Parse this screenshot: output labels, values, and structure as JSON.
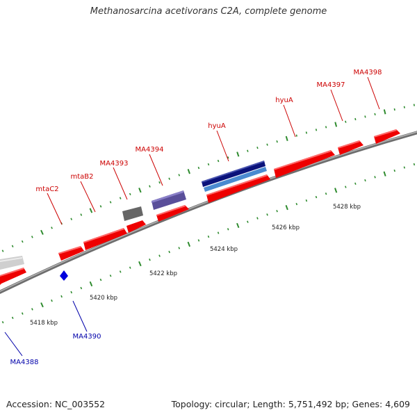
{
  "title": "Methanosarcina acetivorans C2A, complete genome",
  "footer": {
    "accession": "Accession: NC_003552",
    "summary": "Topology: circular; Length: 5,751,492 bp; Genes: 4,609"
  },
  "colors": {
    "forward_gene": "#ff0000",
    "reverse_gene": "#0000dd",
    "backbone": "#8a8a8a",
    "tick": "#2e8b2e",
    "forward_label": "#cc0000",
    "reverse_label": "#0000aa"
  },
  "scale_labels": [
    "5418 kbp",
    "5420 kbp",
    "5422 kbp",
    "5424 kbp",
    "5426 kbp",
    "5428 kbp"
  ],
  "gene_labels": [
    {
      "text": "mtaC2",
      "strand": "forward"
    },
    {
      "text": "mtaB2",
      "strand": "forward"
    },
    {
      "text": "MA4393",
      "strand": "forward"
    },
    {
      "text": "MA4394",
      "strand": "forward"
    },
    {
      "text": "hyuA",
      "strand": "forward"
    },
    {
      "text": "hyuA",
      "strand": "forward"
    },
    {
      "text": "MA4397",
      "strand": "forward"
    },
    {
      "text": "MA4398",
      "strand": "forward"
    },
    {
      "text": "MA4390",
      "strand": "reverse"
    },
    {
      "text": "MA4388",
      "strand": "reverse"
    }
  ]
}
